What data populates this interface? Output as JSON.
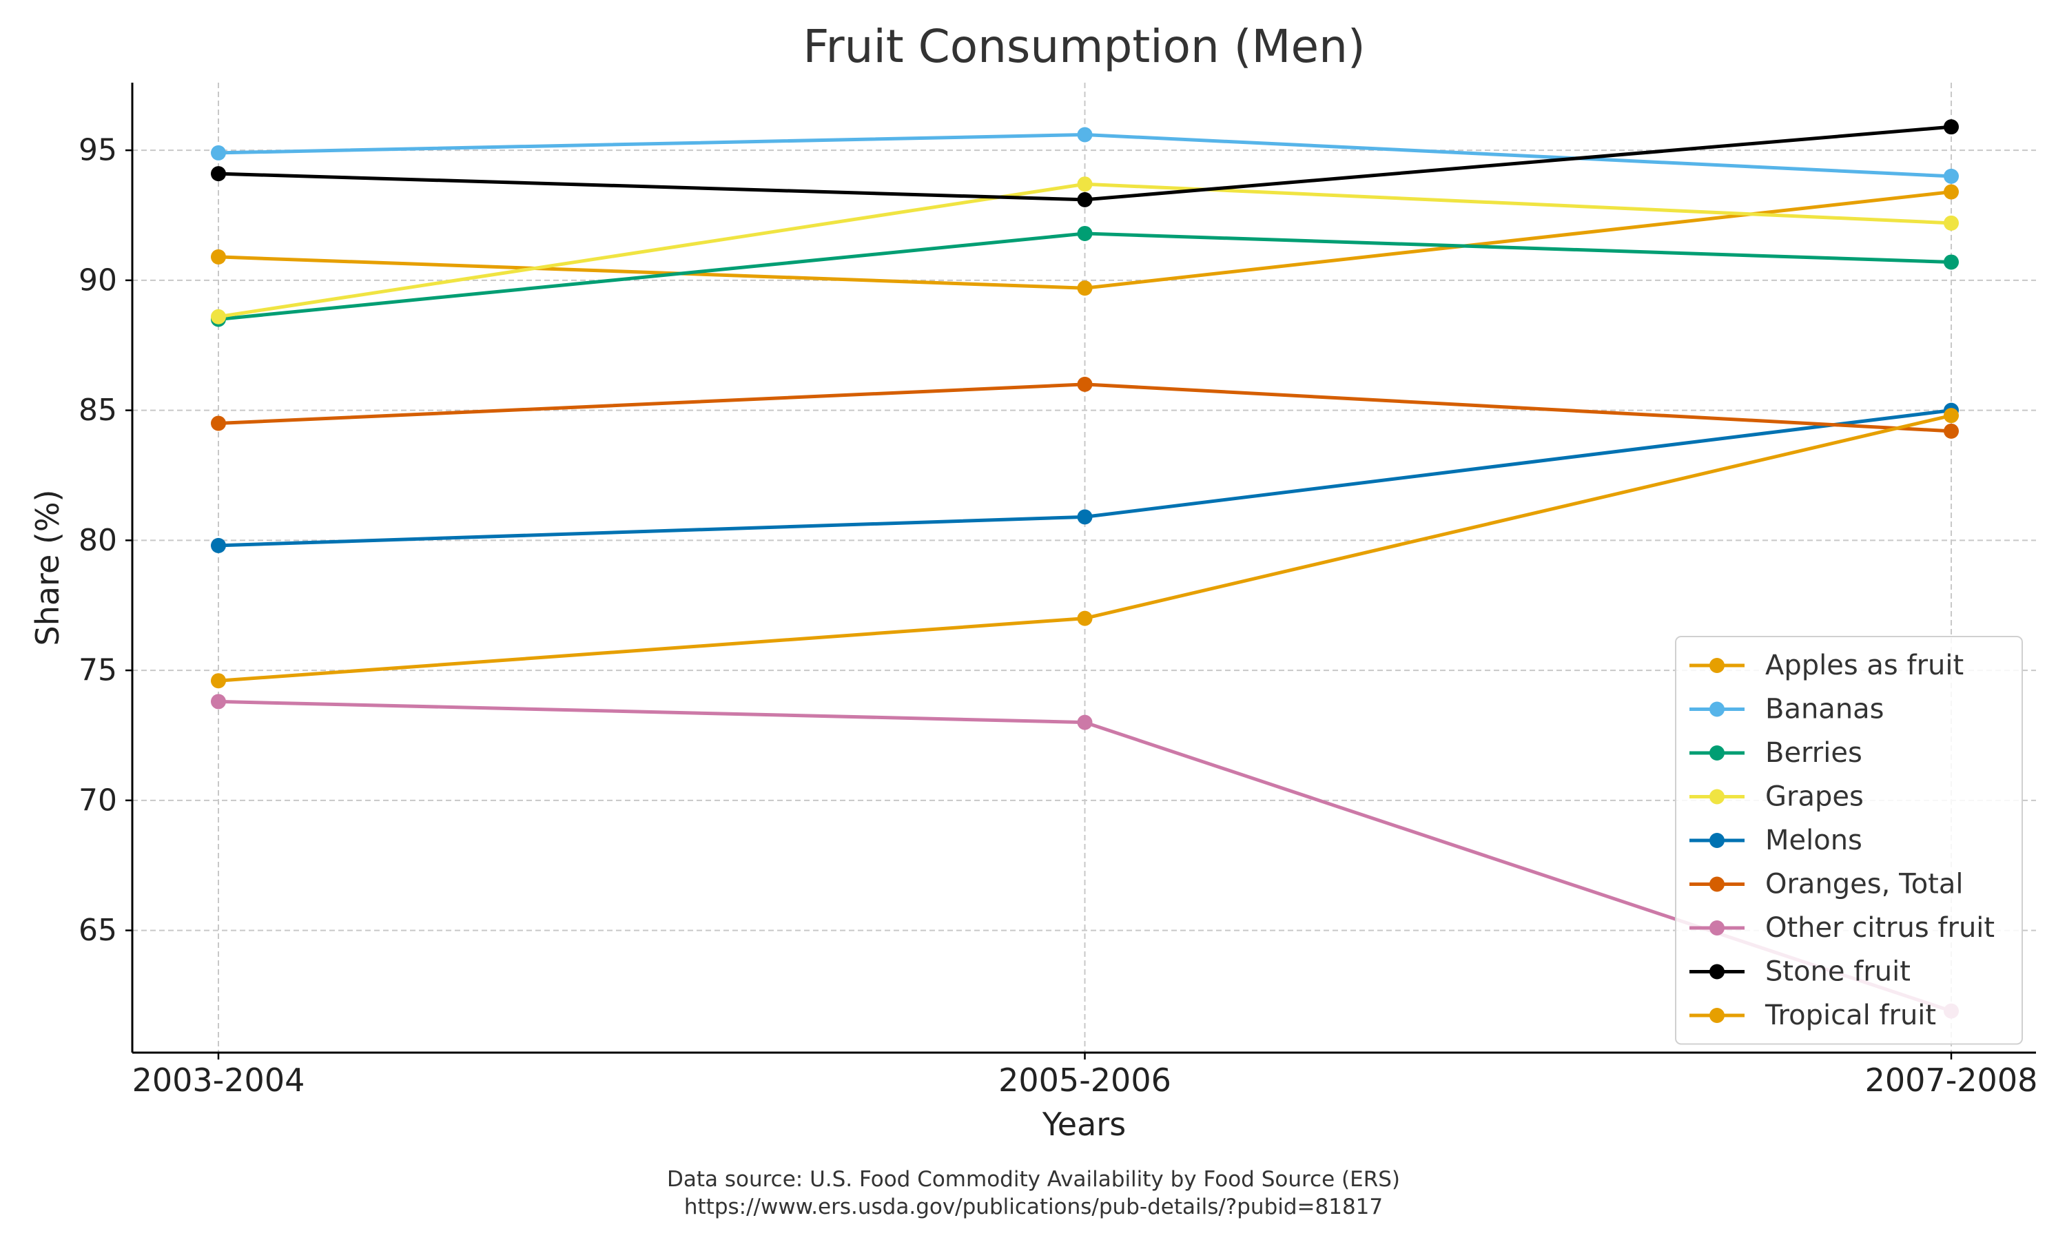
{
  "chart_data": {
    "type": "line",
    "title": "Fruit Consumption (Men)",
    "xlabel": "Years",
    "ylabel": "Share (%)",
    "categories": [
      "2003-2004",
      "2005-2006",
      "2007-2008"
    ],
    "ylim": [
      60.3,
      97.6
    ],
    "yticks": [
      65,
      70,
      75,
      80,
      85,
      90,
      95
    ],
    "grid": true,
    "grid_style": "dashed",
    "legend_position": "lower-right",
    "series": [
      {
        "name": "Apples as fruit",
        "color": "#E69F00",
        "values": [
          90.9,
          89.7,
          93.4
        ]
      },
      {
        "name": "Bananas",
        "color": "#56B4E9",
        "values": [
          94.9,
          95.6,
          94.0
        ]
      },
      {
        "name": "Berries",
        "color": "#009E73",
        "values": [
          88.5,
          91.8,
          90.7
        ]
      },
      {
        "name": "Grapes",
        "color": "#F0E442",
        "values": [
          88.6,
          93.7,
          92.2
        ]
      },
      {
        "name": "Melons",
        "color": "#0072B2",
        "values": [
          79.8,
          80.9,
          85.0
        ]
      },
      {
        "name": "Oranges, Total",
        "color": "#D55E00",
        "values": [
          84.5,
          86.0,
          84.2
        ]
      },
      {
        "name": "Other citrus fruit",
        "color": "#CC79A7",
        "values": [
          73.8,
          73.0,
          61.9
        ]
      },
      {
        "name": "Stone fruit",
        "color": "#000000",
        "values": [
          94.1,
          93.1,
          95.9
        ]
      },
      {
        "name": "Tropical fruit",
        "color": "#E69F00",
        "values": [
          74.6,
          77.0,
          84.8
        ]
      }
    ]
  },
  "source": {
    "line1": "Data source: U.S. Food Commodity Availability by Food Source (ERS)",
    "line2": "https://www.ers.usda.gov/publications/pub-details/?pubid=81817"
  }
}
